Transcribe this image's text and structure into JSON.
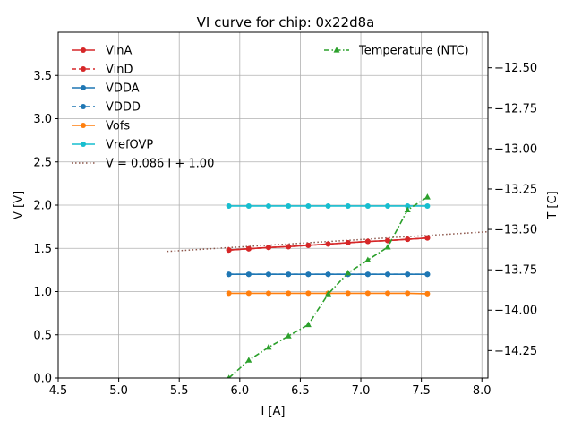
{
  "chart_data": {
    "type": "line",
    "title": "VI curve for chip: 0x22d8a",
    "xlabel": "I [A]",
    "ylabel": "V [V]",
    "y2label": "T [C]",
    "xlim": [
      4.5,
      8.05
    ],
    "ylim": [
      0,
      4.0
    ],
    "y2lim": [
      -14.42,
      -12.28
    ],
    "xticks": [
      "4.5",
      "5.0",
      "5.5",
      "6.0",
      "6.5",
      "7.0",
      "7.5",
      "8.0"
    ],
    "yticks": [
      "0.0",
      "0.5",
      "1.0",
      "1.5",
      "2.0",
      "2.5",
      "3.0",
      "3.5"
    ],
    "y2ticks": [
      "−12.50",
      "−12.75",
      "−13.00",
      "−13.25",
      "−13.50",
      "−13.75",
      "−14.00",
      "−14.25"
    ],
    "grid": true,
    "x": [
      5.91,
      6.074,
      6.238,
      6.402,
      6.566,
      6.73,
      6.894,
      7.058,
      7.222,
      7.386,
      7.55
    ],
    "series": [
      {
        "name": "VinA",
        "color": "#d62728",
        "style": "solid",
        "axis": "left",
        "values": [
          1.48,
          1.495,
          1.51,
          1.52,
          1.535,
          1.55,
          1.565,
          1.58,
          1.59,
          1.605,
          1.62
        ]
      },
      {
        "name": "VinD",
        "color": "#d62728",
        "style": "dashed",
        "axis": "left",
        "values": [
          1.48,
          1.495,
          1.51,
          1.52,
          1.535,
          1.55,
          1.565,
          1.58,
          1.59,
          1.605,
          1.62
        ]
      },
      {
        "name": "VDDA",
        "color": "#1f77b4",
        "style": "solid",
        "axis": "left",
        "values": [
          1.2,
          1.2,
          1.2,
          1.2,
          1.2,
          1.2,
          1.2,
          1.2,
          1.2,
          1.2,
          1.2
        ]
      },
      {
        "name": "VDDD",
        "color": "#1f77b4",
        "style": "dashed",
        "axis": "left",
        "values": [
          1.2,
          1.2,
          1.2,
          1.2,
          1.2,
          1.2,
          1.2,
          1.2,
          1.2,
          1.2,
          1.2
        ]
      },
      {
        "name": "Vofs",
        "color": "#ff7f0e",
        "style": "solid",
        "axis": "left",
        "values": [
          0.98,
          0.98,
          0.98,
          0.98,
          0.98,
          0.98,
          0.98,
          0.98,
          0.98,
          0.98,
          0.975
        ]
      },
      {
        "name": "VrefOVP",
        "color": "#17becf",
        "style": "solid",
        "axis": "left",
        "values": [
          1.99,
          1.99,
          1.99,
          1.99,
          1.99,
          1.99,
          1.99,
          1.99,
          1.99,
          1.99,
          1.99
        ]
      }
    ],
    "fit": {
      "name": "V = 0.086 I + 1.00",
      "color": "#8c564b",
      "slope": 0.086,
      "x_start": 5.4,
      "x_end": 8.05
    },
    "temperature": {
      "name": "Temperature (NTC)",
      "color": "#2ca02c",
      "axis": "right",
      "values": [
        -14.42,
        -14.31,
        -14.23,
        -14.16,
        -14.09,
        -13.9,
        -13.77,
        -13.69,
        -13.61,
        -13.38,
        -13.3
      ]
    }
  }
}
